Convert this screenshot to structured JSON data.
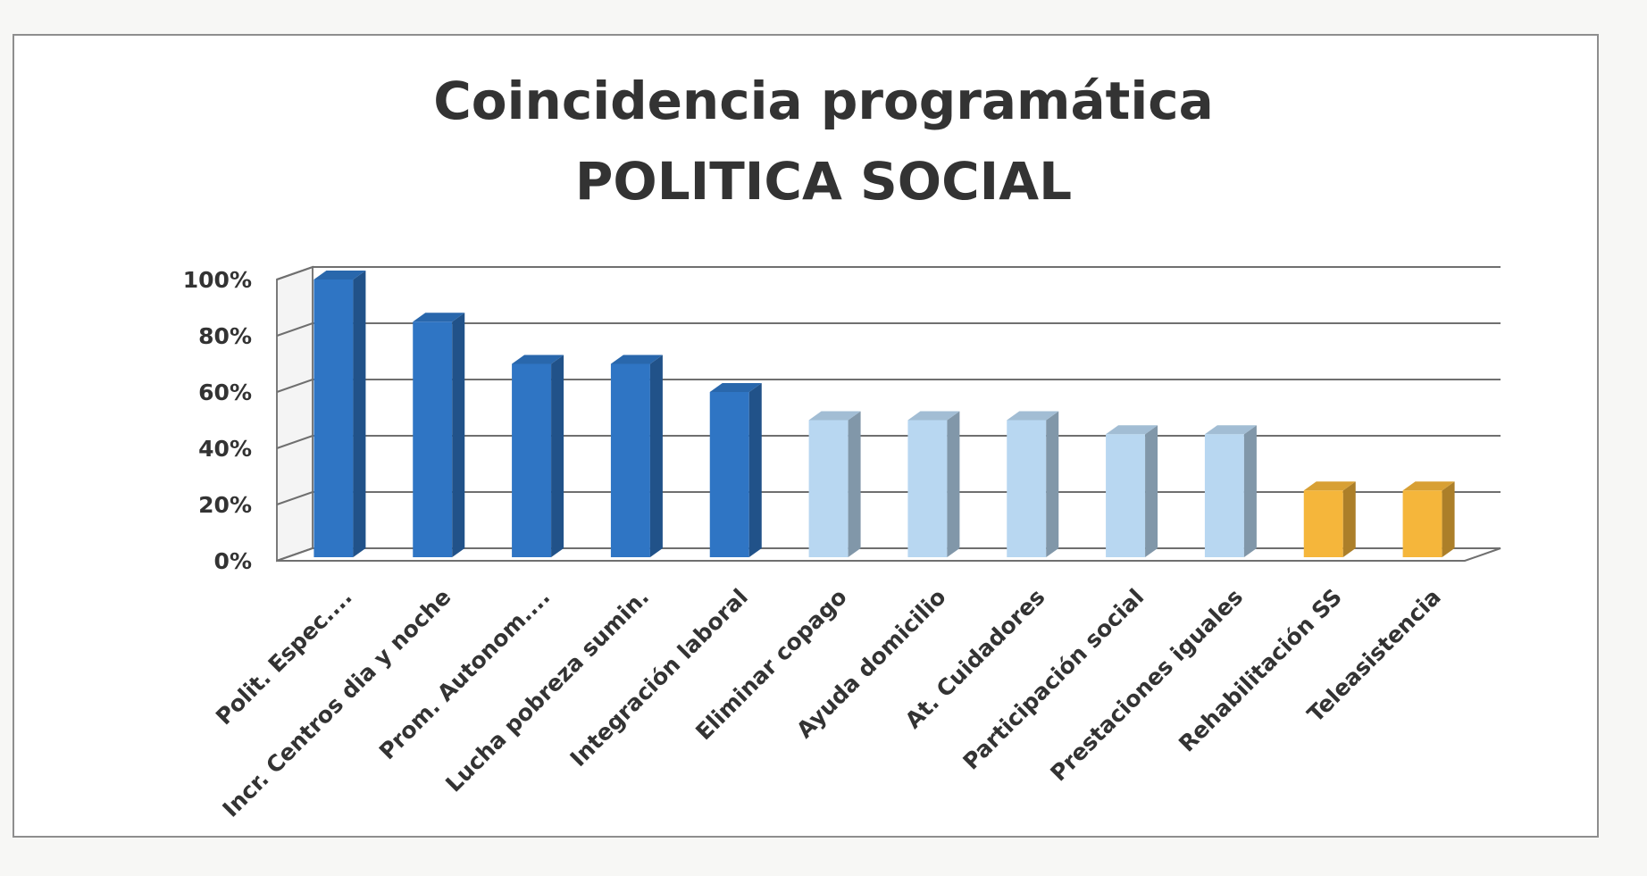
{
  "chart_data": {
    "type": "bar",
    "title": "Coincidencia programática",
    "subtitle": "POLITICA SOCIAL",
    "xlabel": "",
    "ylabel": "",
    "ylim": [
      0,
      100
    ],
    "yticks": [
      "0%",
      "20%",
      "40%",
      "60%",
      "80%",
      "100%"
    ],
    "categories": [
      "Polit. Espec....",
      "Incr. Centros dia y noche",
      "Prom. Autonom....",
      "Lucha pobreza sumin.",
      "Integración laboral",
      "Eliminar copago",
      "Ayuda domicilio",
      "At. Cuidadores",
      "Participación social",
      "Prestaciones iguales",
      "Rehabilitación SS",
      "Teleasistencia"
    ],
    "values": [
      100,
      85,
      70,
      70,
      60,
      50,
      50,
      50,
      45,
      45,
      25,
      25
    ],
    "bar_colors": [
      "#2f75c4",
      "#2f75c4",
      "#2f75c4",
      "#2f75c4",
      "#2f75c4",
      "#b8d7f1",
      "#b8d7f1",
      "#b8d7f1",
      "#b8d7f1",
      "#b8d7f1",
      "#f5b63b",
      "#f5b63b"
    ],
    "grid": true,
    "legend": "none",
    "style": "3d-column"
  }
}
